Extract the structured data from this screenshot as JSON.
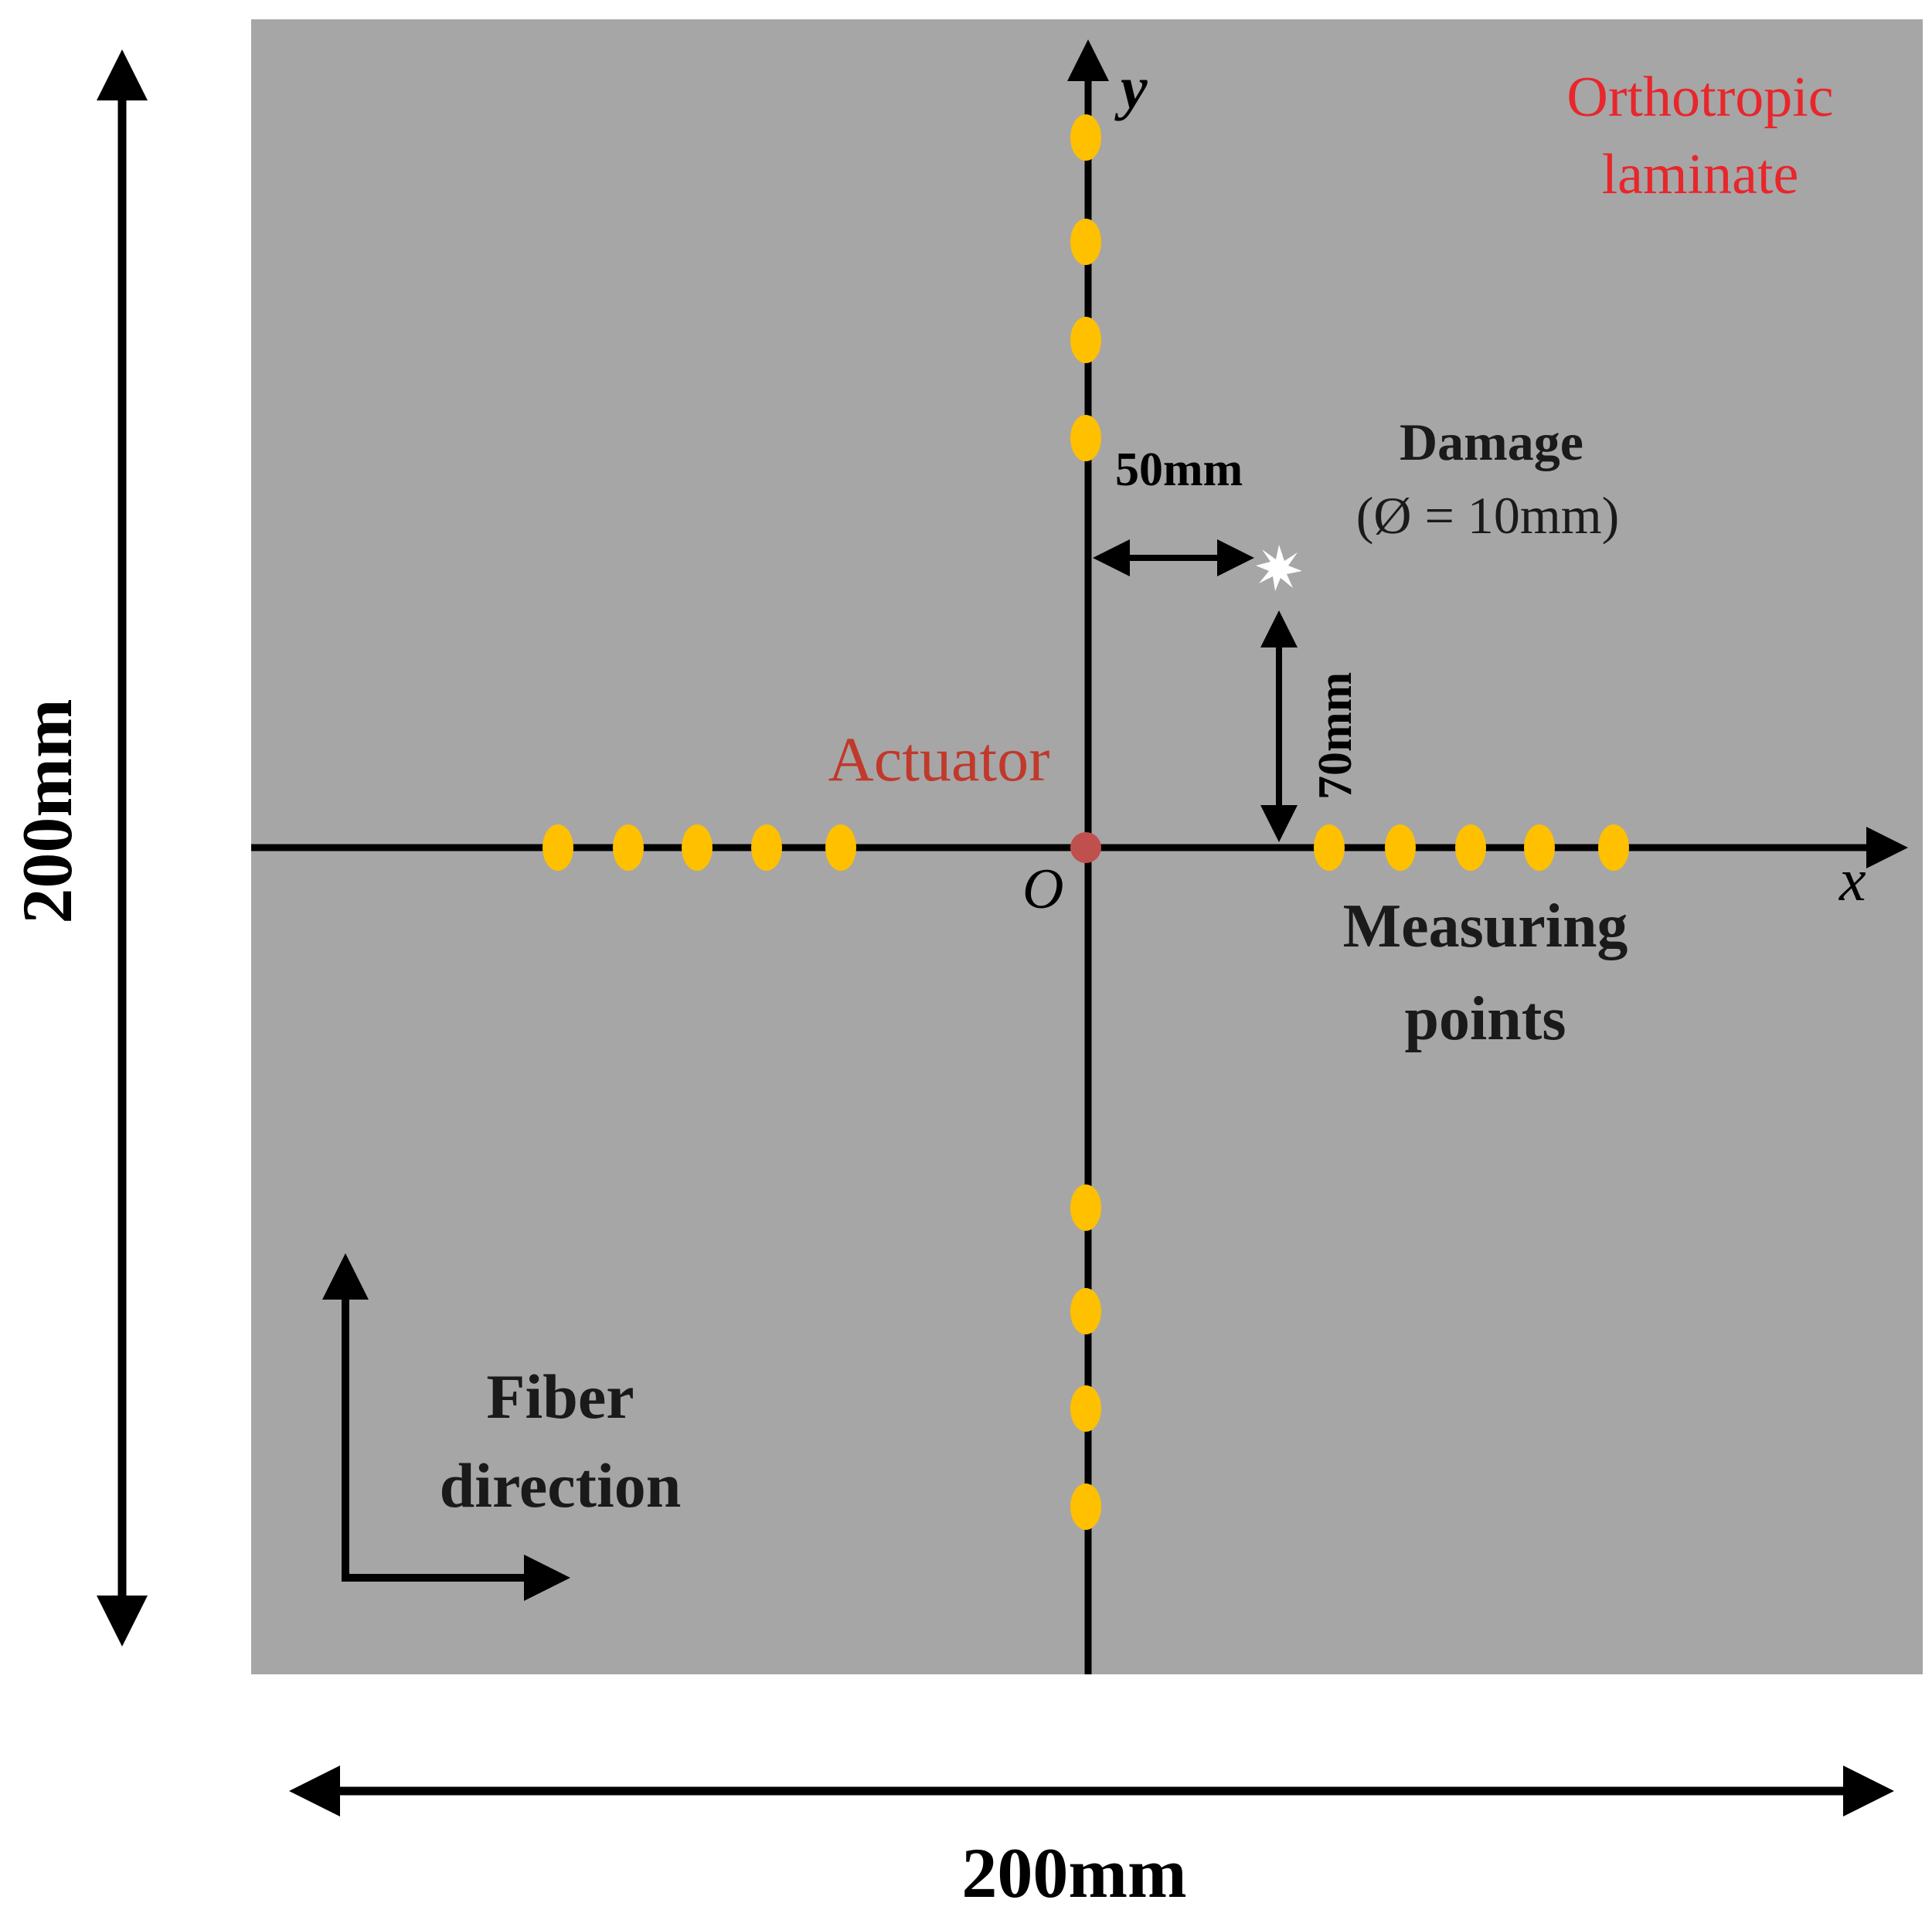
{
  "labels": {
    "material": [
      "Orthotropic",
      "laminate"
    ],
    "axis_y": "y",
    "axis_x": "x",
    "origin": "O",
    "actuator": "Actuator",
    "damage_title": "Damage",
    "damage_size": "(Ø = 10mm)",
    "dim_50": "50mm",
    "dim_70": "70mm",
    "measuring": [
      "Measuring",
      "points"
    ],
    "fiber": [
      "Fiber",
      "direction"
    ],
    "width_dim": "200mm",
    "height_dim": "200mm"
  },
  "colors": {
    "plate": "#a6a6a6",
    "axis": "#000000",
    "measuring_point": "#ffc000",
    "actuator_dot": "#c0504d",
    "red_text": "#e8262b",
    "actuator_text": "#c0392b",
    "damage_marker": "#ffffff"
  },
  "icons": {
    "damage": "starburst-icon",
    "actuator": "circle-dot-icon",
    "measuring_point": "oval-dot-icon"
  }
}
